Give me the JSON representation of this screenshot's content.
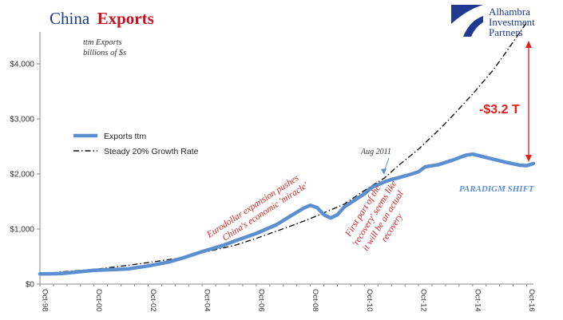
{
  "title": {
    "part1": "China",
    "part2": "Exports"
  },
  "units": {
    "line1": "ttm Exports",
    "line2": "billions of $s"
  },
  "logo": {
    "line1": "Alhambra",
    "line2": "Investment",
    "line3": "Partners"
  },
  "colors": {
    "exports": "#5b8fd0",
    "steady": "#111111",
    "annotation": "#d21f1f",
    "gap": "#e0201c",
    "title_blue": "#1f3a8f",
    "title_red": "#c8101e"
  },
  "annotations": {
    "aug2011": "Aug 2011",
    "eurodollar_line1": "Eurodollar expansion pushes",
    "eurodollar_line2": "China's economic 'miracle'",
    "recovery_line1": "First part of the",
    "recovery_line2": "'recovery' seems like",
    "recovery_line3": "it will be an actual",
    "recovery_line4": "recovery",
    "paradigm": "PARADIGM SHIFT",
    "gap": "-$3.2 T"
  },
  "chart_data": {
    "type": "line",
    "title": "China Exports",
    "ylabel": "ttm Exports billions of $s",
    "ylim": [
      0,
      4500
    ],
    "xlim": [
      1998.75,
      2017.0
    ],
    "y_ticks": [
      {
        "value": 0,
        "label": "$0"
      },
      {
        "value": 1000,
        "label": "$1,000"
      },
      {
        "value": 2000,
        "label": "$2,000"
      },
      {
        "value": 3000,
        "label": "$3,000"
      },
      {
        "value": 4000,
        "label": "$4,000"
      }
    ],
    "x_ticks": [
      {
        "value": 1998.75,
        "label": "Oct-98"
      },
      {
        "value": 2000.75,
        "label": "Oct-00"
      },
      {
        "value": 2002.75,
        "label": "Oct-02"
      },
      {
        "value": 2004.75,
        "label": "Oct-04"
      },
      {
        "value": 2006.75,
        "label": "Oct-06"
      },
      {
        "value": 2008.75,
        "label": "Oct-08"
      },
      {
        "value": 2010.75,
        "label": "Oct-10"
      },
      {
        "value": 2012.75,
        "label": "Oct-12"
      },
      {
        "value": 2014.75,
        "label": "Oct-14"
      },
      {
        "value": 2016.75,
        "label": "Oct-16"
      }
    ],
    "legend": {
      "placement": "left",
      "entries": [
        "Exports ttm",
        "Steady 20% Growth Rate"
      ]
    },
    "series": [
      {
        "name": "Exports ttm",
        "style": "solid",
        "x": [
          1998.75,
          1999.5,
          2000.0,
          2000.75,
          2001.5,
          2002.0,
          2002.75,
          2003.5,
          2004.0,
          2004.75,
          2005.5,
          2006.0,
          2006.75,
          2007.5,
          2008.0,
          2008.5,
          2008.75,
          2009.0,
          2009.25,
          2009.5,
          2009.75,
          2010.0,
          2010.5,
          2010.75,
          2011.0,
          2011.5,
          2011.75,
          2012.0,
          2012.5,
          2012.75,
          2013.0,
          2013.5,
          2013.75,
          2014.0,
          2014.5,
          2014.75,
          2015.0,
          2015.5,
          2015.75,
          2016.0,
          2016.5,
          2016.75,
          2017.0
        ],
        "y": [
          185,
          190,
          215,
          250,
          265,
          275,
          330,
          400,
          470,
          590,
          700,
          790,
          920,
          1080,
          1230,
          1380,
          1430,
          1390,
          1260,
          1200,
          1260,
          1400,
          1560,
          1640,
          1750,
          1860,
          1900,
          1930,
          2000,
          2040,
          2130,
          2170,
          2210,
          2250,
          2340,
          2360,
          2330,
          2270,
          2240,
          2210,
          2160,
          2150,
          2190
        ]
      },
      {
        "name": "Steady 20% Growth Rate",
        "style": "dash-dot",
        "x": [
          1998.75,
          2000.0,
          2000.75,
          2002.0,
          2002.75,
          2004.0,
          2004.75,
          2006.0,
          2006.75,
          2008.0,
          2008.75,
          2010.0,
          2010.75,
          2011.5,
          2012.0,
          2012.75,
          2013.5,
          2014.0,
          2014.75,
          2015.5,
          2016.0,
          2016.75
        ],
        "y": [
          185,
          240,
          265,
          340,
          390,
          480,
          570,
          710,
          830,
          1050,
          1190,
          1450,
          1700,
          1930,
          2150,
          2450,
          2800,
          3050,
          3450,
          3880,
          4220,
          4750
        ]
      }
    ]
  }
}
